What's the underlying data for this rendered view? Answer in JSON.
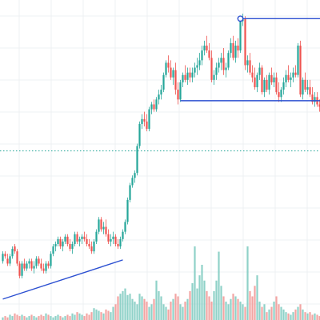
{
  "colors": {
    "up": "#26a69a",
    "down": "#ef5350",
    "volume_up": "#8fd1c8",
    "volume_down": "#f2a5a3",
    "grid": "#eef0f3",
    "trendline": "#2b4fd1",
    "dotted_level": "#26a69a"
  },
  "chart_data": {
    "type": "candlestick",
    "title": "",
    "xlabel": "",
    "ylabel": "",
    "ylim": [
      9.5,
      131
    ],
    "grid": true,
    "legend": "none",
    "dotted_level": 72,
    "trendlines": [
      {
        "from": [
          0,
          11.5
        ],
        "to": [
          50,
          27.5
        ]
      },
      {
        "from": [
          99,
          126
        ],
        "to": [
          133,
          126
        ]
      }
    ],
    "horizontal_ray": {
      "from": [
        74,
        92.5
      ],
      "to": [
        133,
        92.5
      ]
    },
    "candles": [
      [
        27,
        31,
        26,
        30
      ],
      [
        30,
        31,
        28,
        29
      ],
      [
        28,
        30,
        25,
        26
      ],
      [
        26,
        30,
        25,
        29
      ],
      [
        29,
        33,
        28,
        32
      ],
      [
        33,
        34,
        30,
        31
      ],
      [
        31,
        32,
        25,
        26
      ],
      [
        26,
        27,
        20,
        21
      ],
      [
        21,
        27,
        20,
        26
      ],
      [
        26,
        28,
        23,
        24
      ],
      [
        24,
        27,
        23,
        26
      ],
      [
        26,
        28,
        24,
        27
      ],
      [
        27,
        28,
        23,
        24
      ],
      [
        24,
        27,
        22,
        25
      ],
      [
        25,
        29,
        24,
        28
      ],
      [
        28,
        29,
        25,
        26
      ],
      [
        26,
        28,
        23,
        24
      ],
      [
        24,
        26,
        22,
        23
      ],
      [
        23,
        27,
        22,
        26
      ],
      [
        26,
        27,
        24,
        25
      ],
      [
        25,
        31,
        24,
        30
      ],
      [
        30,
        34,
        29,
        33
      ],
      [
        33,
        35,
        31,
        34
      ],
      [
        34,
        37,
        33,
        36
      ],
      [
        36,
        37,
        32,
        33
      ],
      [
        33,
        36,
        31,
        35
      ],
      [
        35,
        38,
        34,
        37
      ],
      [
        37,
        38,
        33,
        34
      ],
      [
        34,
        36,
        31,
        32
      ],
      [
        32,
        35,
        30,
        34
      ],
      [
        34,
        39,
        33,
        38
      ],
      [
        38,
        39,
        34,
        35
      ],
      [
        35,
        37,
        33,
        36
      ],
      [
        36,
        38,
        34,
        37
      ],
      [
        37,
        39,
        35,
        36
      ],
      [
        36,
        38,
        33,
        34
      ],
      [
        34,
        36,
        32,
        33
      ],
      [
        33,
        35,
        30,
        31
      ],
      [
        31,
        36,
        30,
        35
      ],
      [
        35,
        40,
        34,
        39
      ],
      [
        39,
        45,
        38,
        44
      ],
      [
        44,
        45,
        39,
        40
      ],
      [
        40,
        43,
        38,
        41
      ],
      [
        41,
        44,
        37,
        38
      ],
      [
        38,
        40,
        34,
        35
      ],
      [
        35,
        38,
        33,
        36
      ],
      [
        36,
        39,
        34,
        37
      ],
      [
        37,
        38,
        33,
        34
      ],
      [
        34,
        36,
        32,
        33
      ],
      [
        33,
        37,
        32,
        36
      ],
      [
        36,
        40,
        35,
        39
      ],
      [
        39,
        44,
        38,
        43
      ],
      [
        43,
        53,
        42,
        52
      ],
      [
        52,
        59,
        51,
        58
      ],
      [
        58,
        62,
        57,
        61
      ],
      [
        61,
        64,
        59,
        63
      ],
      [
        63,
        75,
        62,
        74
      ],
      [
        74,
        84,
        73,
        83
      ],
      [
        83,
        87,
        81,
        85
      ],
      [
        85,
        88,
        82,
        84
      ],
      [
        84,
        87,
        80,
        81
      ],
      [
        81,
        90,
        80,
        89
      ],
      [
        89,
        92,
        87,
        91
      ],
      [
        91,
        93,
        88,
        89
      ],
      [
        89,
        94,
        88,
        93
      ],
      [
        93,
        97,
        91,
        95
      ],
      [
        95,
        99,
        93,
        97
      ],
      [
        97,
        104,
        96,
        103
      ],
      [
        103,
        109,
        102,
        108
      ],
      [
        108,
        111,
        104,
        106
      ],
      [
        106,
        109,
        101,
        102
      ],
      [
        102,
        106,
        99,
        105
      ],
      [
        105,
        108,
        95,
        97
      ],
      [
        97,
        100,
        91,
        93
      ],
      [
        93,
        101,
        92,
        100
      ],
      [
        100,
        104,
        98,
        103
      ],
      [
        103,
        107,
        100,
        101
      ],
      [
        101,
        106,
        99,
        104
      ],
      [
        104,
        106,
        100,
        102
      ],
      [
        102,
        106,
        100,
        104
      ],
      [
        104,
        108,
        102,
        106
      ],
      [
        106,
        110,
        103,
        107
      ],
      [
        107,
        112,
        105,
        109
      ],
      [
        109,
        115,
        107,
        113
      ],
      [
        113,
        117,
        111,
        115
      ],
      [
        115,
        119,
        112,
        113
      ],
      [
        113,
        116,
        109,
        110
      ],
      [
        110,
        113,
        100,
        101
      ],
      [
        101,
        105,
        99,
        103
      ],
      [
        103,
        108,
        101,
        106
      ],
      [
        106,
        110,
        104,
        108
      ],
      [
        108,
        112,
        105,
        110
      ],
      [
        110,
        114,
        103,
        105
      ],
      [
        105,
        108,
        102,
        106
      ],
      [
        106,
        113,
        105,
        112
      ],
      [
        112,
        118,
        110,
        116
      ],
      [
        116,
        119,
        109,
        110
      ],
      [
        110,
        117,
        108,
        115
      ],
      [
        115,
        118,
        110,
        113
      ],
      [
        113,
        126,
        112,
        125
      ],
      [
        125,
        128,
        123,
        126
      ],
      [
        126,
        127,
        105,
        107
      ],
      [
        107,
        111,
        104,
        109
      ],
      [
        109,
        112,
        103,
        104
      ],
      [
        104,
        107,
        100,
        102
      ],
      [
        102,
        106,
        97,
        98
      ],
      [
        98,
        104,
        96,
        103
      ],
      [
        103,
        108,
        101,
        106
      ],
      [
        106,
        107,
        95,
        96
      ],
      [
        96,
        102,
        94,
        101
      ],
      [
        101,
        103,
        96,
        97
      ],
      [
        97,
        104,
        95,
        103
      ],
      [
        103,
        106,
        99,
        100
      ],
      [
        100,
        104,
        98,
        102
      ],
      [
        102,
        104,
        95,
        96
      ],
      [
        96,
        100,
        92,
        94
      ],
      [
        94,
        98,
        92,
        97
      ],
      [
        97,
        102,
        95,
        100
      ],
      [
        100,
        105,
        98,
        103
      ],
      [
        103,
        107,
        100,
        101
      ],
      [
        101,
        104,
        98,
        102
      ],
      [
        102,
        106,
        100,
        104
      ],
      [
        104,
        107,
        102,
        103
      ],
      [
        103,
        116,
        102,
        115
      ],
      [
        115,
        117,
        94,
        95
      ],
      [
        95,
        102,
        93,
        101
      ],
      [
        101,
        104,
        96,
        97
      ],
      [
        97,
        101,
        95,
        98
      ],
      [
        98,
        101,
        94,
        95
      ],
      [
        95,
        98,
        91,
        92
      ],
      [
        92,
        96,
        90,
        94
      ],
      [
        94,
        96,
        90,
        91
      ],
      [
        91,
        93,
        88,
        90
      ],
      [
        90,
        93,
        87,
        92
      ]
    ],
    "volumes": [
      2,
      3,
      2,
      4,
      3,
      5,
      4,
      3,
      4,
      3,
      2,
      3,
      4,
      3,
      2,
      3,
      4,
      3,
      5,
      4,
      3,
      2,
      3,
      4,
      3,
      2,
      3,
      4,
      3,
      5,
      4,
      6,
      5,
      4,
      3,
      5,
      4,
      6,
      9,
      8,
      7,
      6,
      5,
      8,
      7,
      6,
      10,
      12,
      18,
      20,
      22,
      24,
      19,
      20,
      16,
      14,
      12,
      20,
      18,
      16,
      14,
      10,
      12,
      16,
      30,
      22,
      18,
      12,
      10,
      8,
      14,
      16,
      20,
      18,
      12,
      10,
      14,
      16,
      22,
      28,
      56,
      24,
      34,
      42,
      30,
      22,
      18,
      14,
      22,
      30,
      52,
      26,
      18,
      14,
      12,
      16,
      20,
      18,
      16,
      14,
      12,
      10,
      56,
      22,
      18,
      26,
      34,
      14,
      10,
      12,
      6,
      8,
      10,
      14,
      18,
      12,
      10,
      8,
      6,
      5,
      4,
      6,
      8,
      10,
      12,
      8,
      6,
      5,
      6,
      4,
      5,
      4,
      3,
      4
    ]
  }
}
